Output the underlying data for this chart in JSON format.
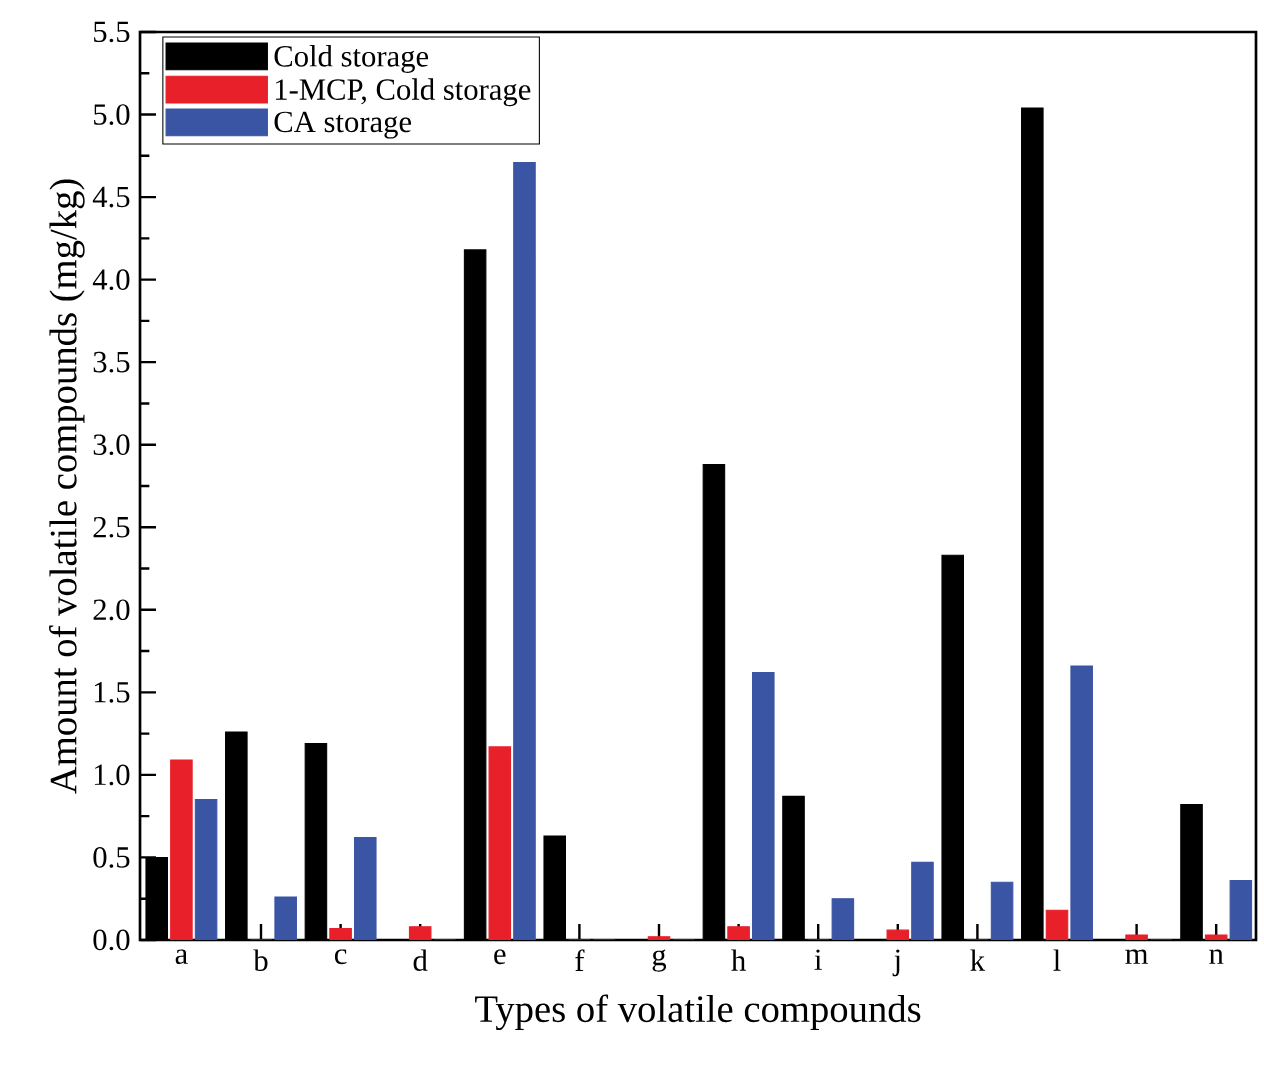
{
  "chart_data": {
    "type": "bar",
    "xlabel": "Types of volatile compounds",
    "ylabel": "Amount of volatile compounds (mg/kg)",
    "categories": [
      "a",
      "b",
      "c",
      "d",
      "e",
      "f",
      "g",
      "h",
      "i",
      "j",
      "k",
      "l",
      "m",
      "n"
    ],
    "series": [
      {
        "name": "Cold storage",
        "color": "#000000",
        "values": [
          0.5,
          1.26,
          1.19,
          0,
          4.18,
          0.63,
          0,
          2.88,
          0.87,
          0,
          2.33,
          5.04,
          0,
          0.82
        ]
      },
      {
        "name": "1-MCP, Cold storage",
        "color": "#e8202a",
        "values": [
          1.09,
          0,
          0.07,
          0.08,
          1.17,
          0,
          0.02,
          0.08,
          0,
          0.06,
          0,
          0.18,
          0.03,
          0.03
        ]
      },
      {
        "name": "CA storage",
        "color": "#3a55a4",
        "values": [
          0.85,
          0.26,
          0.62,
          0,
          4.71,
          0,
          0,
          1.62,
          0.25,
          0.47,
          0.35,
          1.66,
          0,
          0.36
        ]
      }
    ],
    "ylim": [
      0,
      5.5
    ],
    "yticks": [
      {
        "value": 0,
        "label": "0.0"
      },
      {
        "value": 0.5,
        "label": "0.5"
      },
      {
        "value": 1,
        "label": "1.0"
      },
      {
        "value": 1.5,
        "label": "1.5"
      },
      {
        "value": 2,
        "label": "2.0"
      },
      {
        "value": 2.5,
        "label": "2.5"
      },
      {
        "value": 3,
        "label": "3.0"
      },
      {
        "value": 3.5,
        "label": "3.5"
      },
      {
        "value": 4,
        "label": "4.0"
      },
      {
        "value": 4.5,
        "label": "4.5"
      },
      {
        "value": 5,
        "label": "5.0"
      },
      {
        "value": 5.5,
        "label": "5.5"
      }
    ],
    "legend": "top left",
    "grid": false
  }
}
